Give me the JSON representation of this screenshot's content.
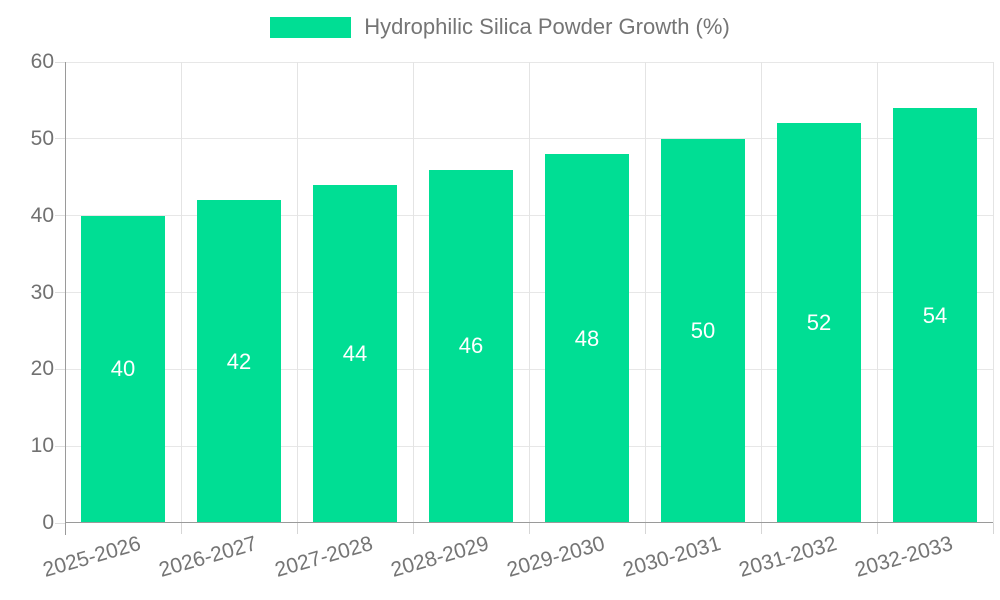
{
  "chart_data": {
    "type": "bar",
    "title": "Hydrophilic Silica Powder Growth (%)",
    "categories": [
      "2025-2026",
      "2026-2027",
      "2027-2028",
      "2028-2029",
      "2029-2030",
      "2030-2031",
      "2031-2032",
      "2032-2033"
    ],
    "values": [
      40,
      42,
      44,
      46,
      48,
      50,
      52,
      54
    ],
    "xlabel": "",
    "ylabel": "",
    "ylim": [
      0,
      60
    ],
    "yticks": [
      0,
      10,
      20,
      30,
      40,
      50,
      60
    ],
    "grid": true,
    "legend_position": "top",
    "bar_color": "#00DE94",
    "bar_label_color": "#ffffff",
    "axis_text_color": "#757575",
    "gridline_color": "#e7e7e7",
    "axis_line_color": "#9a9a9a"
  }
}
